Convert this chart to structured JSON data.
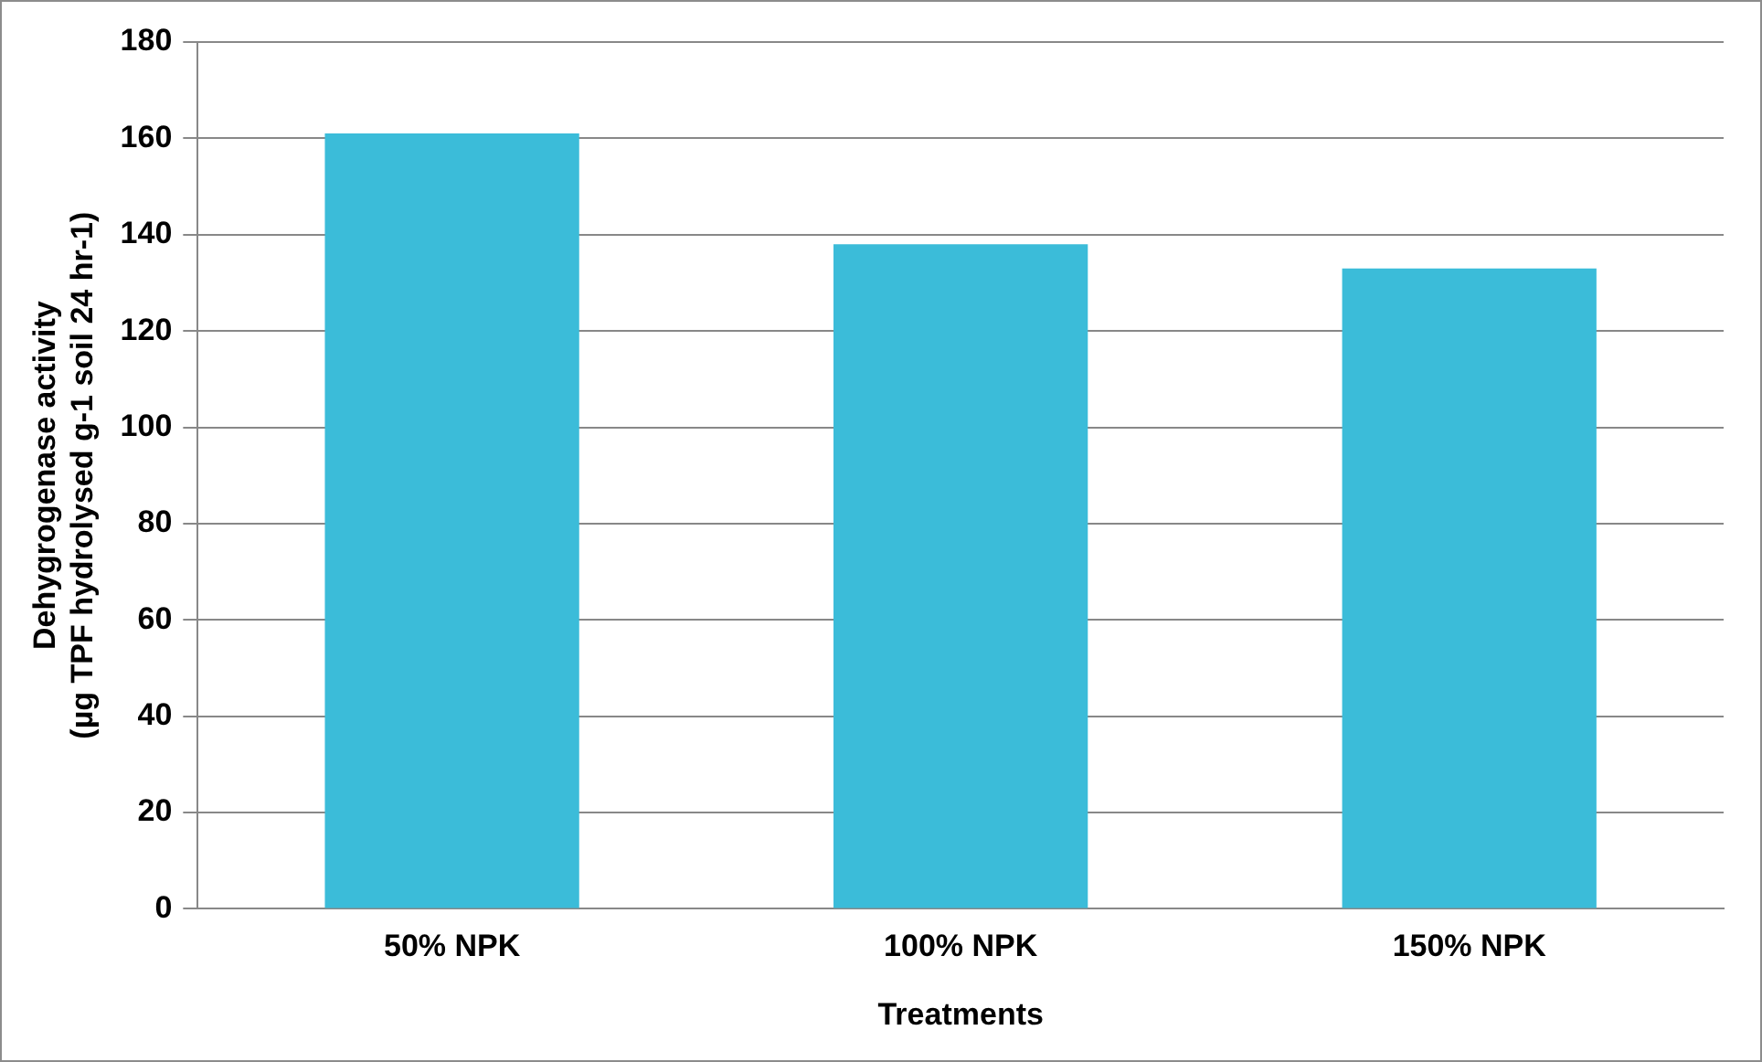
{
  "chart_data": {
    "type": "bar",
    "xlabel": "Treatments",
    "ylabel": "Dehygrogenase activity\n(µg TPF hydrolysed g-1 soil 24 hr-1)",
    "categories": [
      "50% NPK",
      "100% NPK",
      "150% NPK"
    ],
    "values": [
      161,
      138,
      133
    ],
    "color": "#3bbcd9",
    "ylim": [
      0,
      180
    ],
    "yticks": [
      0,
      20,
      40,
      60,
      80,
      100,
      120,
      140,
      160,
      180
    ],
    "grid": "y",
    "legend": false
  }
}
